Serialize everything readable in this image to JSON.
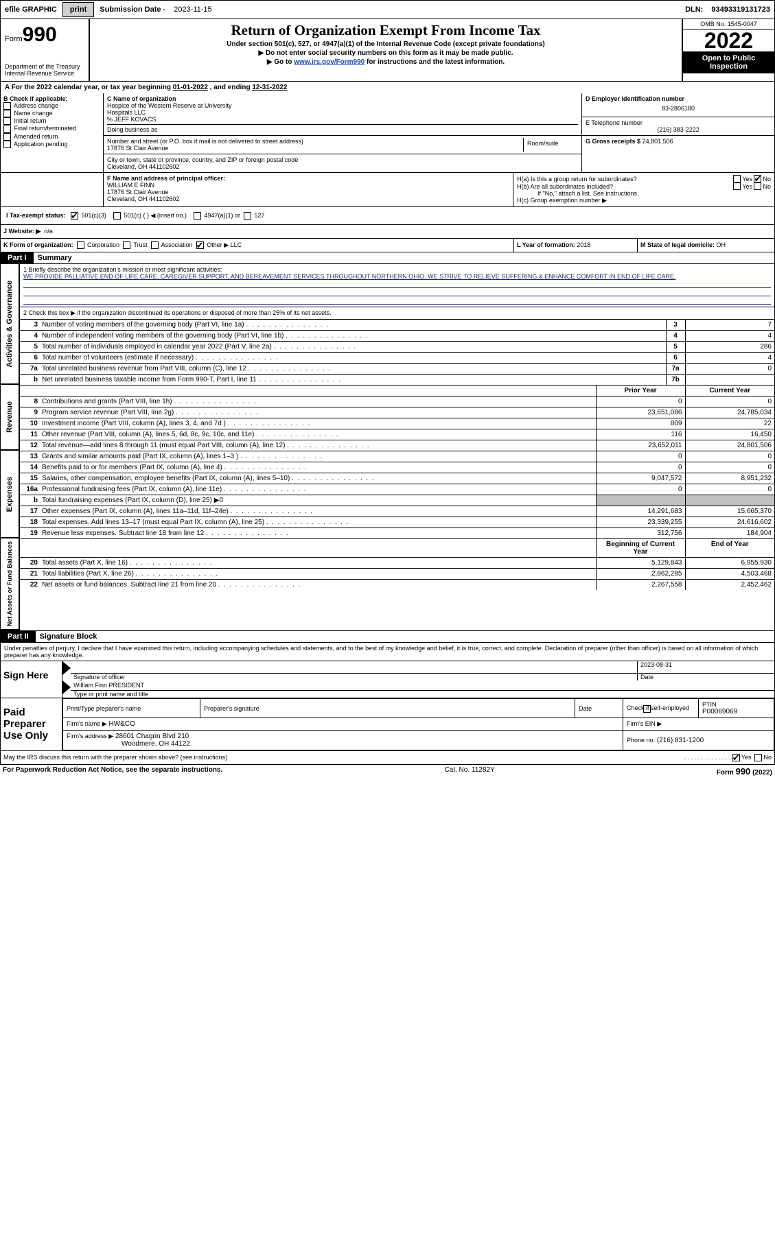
{
  "topbar": {
    "efile": "efile GRAPHIC",
    "print": "print",
    "subm_label": "Submission Date -",
    "subm_date": "2023-11-15",
    "dln_label": "DLN:",
    "dln": "93493319131723"
  },
  "header": {
    "form_label": "Form",
    "form_no": "990",
    "dept": "Department of the Treasury\nInternal Revenue Service",
    "title": "Return of Organization Exempt From Income Tax",
    "subtitle": "Under section 501(c), 527, or 4947(a)(1) of the Internal Revenue Code (except private foundations)",
    "instr1": "▶ Do not enter social security numbers on this form as it may be made public.",
    "instr2_pre": "▶ Go to ",
    "instr2_link": "www.irs.gov/Form990",
    "instr2_post": " for instructions and the latest information.",
    "omb": "OMB No. 1545-0047",
    "year": "2022",
    "inspect": "Open to Public Inspection"
  },
  "lineA": {
    "pre": "A For the 2022 calendar year, or tax year beginning ",
    "begin": "01-01-2022",
    "mid": " , and ending ",
    "end": "12-31-2022"
  },
  "boxB": {
    "label": "B Check if applicable:",
    "items": [
      "Address change",
      "Name change",
      "Initial return",
      "Final return/terminated",
      "Amended return",
      "Application pending"
    ]
  },
  "boxC": {
    "name_label": "C Name of organization",
    "name1": "Hospice of the Western Reserve at University",
    "name2": "Hospitals LLC",
    "name3": "% JEFF KOVACS",
    "dba_label": "Doing business as",
    "addr_label": "Number and street (or P.O. box if mail is not delivered to street address)",
    "room_label": "Room/suite",
    "addr": "17876 St Clair Avenue",
    "city_label": "City or town, state or province, country, and ZIP or foreign postal code",
    "city": "Cleveland, OH  441102602"
  },
  "boxD": {
    "label": "D Employer identification number",
    "val": "83-2806180"
  },
  "boxE": {
    "label": "E Telephone number",
    "val": "(216) 383-2222"
  },
  "boxG": {
    "label": "G Gross receipts $",
    "val": "24,801,506"
  },
  "boxF": {
    "label": "F Name and address of principal officer:",
    "name": "WILLIAM E FINN",
    "addr1": "17876 St Clair Avenue",
    "addr2": "Cleveland, OH  441102602"
  },
  "boxH": {
    "a": "H(a)  Is this a group return for subordinates?",
    "b": "H(b)  Are all subordinates included?",
    "b_note": "If \"No,\" attach a list. See instructions.",
    "c": "H(c)  Group exemption number ▶",
    "yes": "Yes",
    "no": "No"
  },
  "boxI": {
    "label": "I   Tax-exempt status:",
    "opts": [
      "501(c)(3)",
      "501(c) (  ) ◀ (insert no.)",
      "4947(a)(1) or",
      "527"
    ]
  },
  "boxJ": {
    "label": "J   Website: ▶",
    "val": "n/a"
  },
  "boxK": {
    "label": "K Form of organization:",
    "opts": [
      "Corporation",
      "Trust",
      "Association",
      "Other ▶"
    ],
    "other": "LLC"
  },
  "boxL": {
    "label": "L Year of formation:",
    "val": "2018"
  },
  "boxM": {
    "label": "M State of legal domicile:",
    "val": "OH"
  },
  "partI": {
    "label": "Part I",
    "title": "Summary"
  },
  "summary": {
    "gov_label": "Activities & Governance",
    "rev_label": "Revenue",
    "exp_label": "Expenses",
    "net_label": "Net Assets or Fund Balances",
    "line1_intro": "1    Briefly describe the organization's mission or most significant activities:",
    "mission": "WE PROVIDE PALLIATIVE END OF LIFE CARE, CAREGIVER SUPPORT, AND BEREAVEMENT SERVICES THROUGHOUT NORTHERN OHIO. WE STRIVE TO RELIEVE SUFFERING & ENHANCE COMFORT IN END OF LIFE CARE.",
    "line2": "2    Check this box ▶       if the organization discontinued its operations or disposed of more than 25% of its net assets.",
    "prior_hdr": "Prior Year",
    "curr_hdr": "Current Year",
    "begin_hdr": "Beginning of Current Year",
    "end_hdr": "End of Year",
    "rows_top": [
      {
        "n": "3",
        "t": "Number of voting members of the governing body (Part VI, line 1a)",
        "box": "3",
        "v": "7"
      },
      {
        "n": "4",
        "t": "Number of independent voting members of the governing body (Part VI, line 1b)",
        "box": "4",
        "v": "4"
      },
      {
        "n": "5",
        "t": "Total number of individuals employed in calendar year 2022 (Part V, line 2a)",
        "box": "5",
        "v": "286"
      },
      {
        "n": "6",
        "t": "Total number of volunteers (estimate if necessary)",
        "box": "6",
        "v": "4"
      },
      {
        "n": "7a",
        "t": "Total unrelated business revenue from Part VIII, column (C), line 12",
        "box": "7a",
        "v": "0"
      },
      {
        "n": "b",
        "t": "Net unrelated business taxable income from Form 990-T, Part I, line 11",
        "box": "7b",
        "v": ""
      }
    ],
    "rows_rev": [
      {
        "n": "8",
        "t": "Contributions and grants (Part VIII, line 1h)",
        "p": "0",
        "c": "0"
      },
      {
        "n": "9",
        "t": "Program service revenue (Part VIII, line 2g)",
        "p": "23,651,086",
        "c": "24,785,034"
      },
      {
        "n": "10",
        "t": "Investment income (Part VIII, column (A), lines 3, 4, and 7d )",
        "p": "809",
        "c": "22"
      },
      {
        "n": "11",
        "t": "Other revenue (Part VIII, column (A), lines 5, 6d, 8c, 9c, 10c, and 11e)",
        "p": "116",
        "c": "16,450"
      },
      {
        "n": "12",
        "t": "Total revenue—add lines 8 through 11 (must equal Part VIII, column (A), line 12)",
        "p": "23,652,011",
        "c": "24,801,506"
      }
    ],
    "rows_exp": [
      {
        "n": "13",
        "t": "Grants and similar amounts paid (Part IX, column (A), lines 1–3 )",
        "p": "0",
        "c": "0"
      },
      {
        "n": "14",
        "t": "Benefits paid to or for members (Part IX, column (A), line 4)",
        "p": "0",
        "c": "0"
      },
      {
        "n": "15",
        "t": "Salaries, other compensation, employee benefits (Part IX, column (A), lines 5–10)",
        "p": "9,047,572",
        "c": "8,951,232"
      },
      {
        "n": "16a",
        "t": "Professional fundraising fees (Part IX, column (A), line 11e)",
        "p": "0",
        "c": "0"
      },
      {
        "n": "b",
        "t": "Total fundraising expenses (Part IX, column (D), line 25) ▶0",
        "shaded": true
      },
      {
        "n": "17",
        "t": "Other expenses (Part IX, column (A), lines 11a–11d, 11f–24e)",
        "p": "14,291,683",
        "c": "15,665,370"
      },
      {
        "n": "18",
        "t": "Total expenses. Add lines 13–17 (must equal Part IX, column (A), line 25)",
        "p": "23,339,255",
        "c": "24,616,602"
      },
      {
        "n": "19",
        "t": "Revenue less expenses. Subtract line 18 from line 12",
        "p": "312,756",
        "c": "184,904"
      }
    ],
    "rows_net": [
      {
        "n": "20",
        "t": "Total assets (Part X, line 16)",
        "p": "5,129,843",
        "c": "6,955,930"
      },
      {
        "n": "21",
        "t": "Total liabilities (Part X, line 26)",
        "p": "2,862,285",
        "c": "4,503,468"
      },
      {
        "n": "22",
        "t": "Net assets or fund balances. Subtract line 21 from line 20",
        "p": "2,267,558",
        "c": "2,452,462"
      }
    ]
  },
  "partII": {
    "label": "Part II",
    "title": "Signature Block"
  },
  "sig": {
    "decl": "Under penalties of perjury, I declare that I have examined this return, including accompanying schedules and statements, and to the best of my knowledge and belief, it is true, correct, and complete. Declaration of preparer (other than officer) is based on all information of which preparer has any knowledge.",
    "sign_here": "Sign Here",
    "sig_officer": "Signature of officer",
    "date": "Date",
    "date_val": "2023-08-31",
    "officer_name": "William Finn  PRESIDENT",
    "type_name": "Type or print name and title",
    "paid": "Paid Preparer Use Only",
    "prep_name_label": "Print/Type preparer's name",
    "prep_sig_label": "Preparer's signature",
    "check_self": "Check         if self-employed",
    "ptin_label": "PTIN",
    "ptin": "P00069069",
    "firm_name_label": "Firm's name    ▶",
    "firm_name": "HW&CO",
    "firm_ein_label": "Firm's EIN ▶",
    "firm_addr_label": "Firm's address ▶",
    "firm_addr1": "28601 Chagrin Blvd 210",
    "firm_addr2": "Woodmere, OH  44122",
    "firm_phone_label": "Phone no.",
    "firm_phone": "(216) 831-1200",
    "discuss": "May the IRS discuss this return with the preparer shown above? (see instructions)",
    "yes": "Yes",
    "no": "No"
  },
  "footer": {
    "left": "For Paperwork Reduction Act Notice, see the separate instructions.",
    "mid": "Cat. No. 11282Y",
    "right": "Form 990 (2022)"
  }
}
